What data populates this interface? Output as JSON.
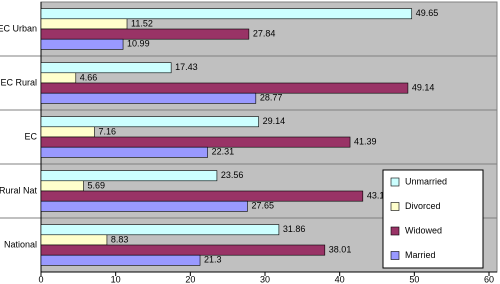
{
  "chart_data": {
    "type": "bar",
    "orientation": "horizontal",
    "categories": [
      "EC Urban",
      "EC Rural",
      "EC",
      "Rural Nat",
      "National"
    ],
    "series": [
      {
        "name": "Unmarried",
        "color": "#ccffff",
        "values": [
          49.65,
          17.43,
          29.14,
          23.56,
          31.86
        ]
      },
      {
        "name": "Divorced",
        "color": "#ffffcc",
        "values": [
          11.52,
          4.66,
          7.16,
          5.69,
          8.83
        ]
      },
      {
        "name": "Widowed",
        "color": "#993366",
        "values": [
          27.84,
          49.14,
          41.39,
          43.1,
          38.01
        ]
      },
      {
        "name": "Married",
        "color": "#9999ff",
        "values": [
          10.99,
          28.77,
          22.31,
          27.65,
          21.3
        ]
      }
    ],
    "xlim": [
      0,
      60
    ],
    "xticks": [
      0,
      10,
      20,
      30,
      40,
      50,
      60
    ],
    "grid": false,
    "legend": "right"
  }
}
